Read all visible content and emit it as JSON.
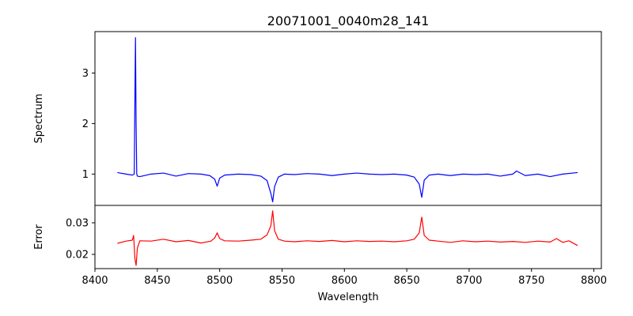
{
  "chart_data": {
    "type": "line",
    "title": "20071001_0040m28_141",
    "xlabel": "Wavelength",
    "xlim": [
      8400,
      8806
    ],
    "x_ticks": [
      "8400",
      "8450",
      "8500",
      "8550",
      "8600",
      "8650",
      "8700",
      "8750",
      "8800"
    ],
    "panels": [
      {
        "name": "spectrum",
        "ylabel": "Spectrum",
        "ylim": [
          0.38,
          3.82
        ],
        "y_ticks": [
          "1",
          "2",
          "3"
        ],
        "series": [
          {
            "color": "#0000ff",
            "x": [
              8418,
              8425,
              8430,
              8431.5,
              8432,
              8432.5,
              8433,
              8433.5,
              8434,
              8436,
              8445,
              8455,
              8465,
              8475,
              8485,
              8492,
              8496,
              8498,
              8500,
              8504,
              8515,
              8525,
              8533,
              8538,
              8541,
              8542.5,
              8544,
              8547,
              8552,
              8560,
              8570,
              8580,
              8590,
              8600,
              8610,
              8620,
              8630,
              8640,
              8650,
              8656,
              8660,
              8662,
              8664,
              8668,
              8675,
              8685,
              8695,
              8705,
              8715,
              8725,
              8735,
              8738,
              8745,
              8755,
              8765,
              8775,
              8787
            ],
            "y": [
              1.03,
              1.0,
              0.98,
              1.0,
              2.4,
              3.7,
              2.0,
              1.0,
              0.96,
              0.95,
              1.0,
              1.02,
              0.96,
              1.01,
              1.0,
              0.97,
              0.9,
              0.76,
              0.92,
              0.98,
              1.0,
              0.99,
              0.96,
              0.87,
              0.62,
              0.45,
              0.75,
              0.94,
              1.0,
              0.99,
              1.01,
              1.0,
              0.97,
              1.0,
              1.02,
              1.0,
              0.99,
              1.0,
              0.98,
              0.94,
              0.8,
              0.54,
              0.88,
              0.98,
              1.0,
              0.97,
              1.0,
              0.99,
              1.0,
              0.96,
              1.0,
              1.06,
              0.97,
              1.0,
              0.95,
              1.0,
              1.03
            ]
          }
        ]
      },
      {
        "name": "error",
        "ylabel": "Error",
        "ylim": [
          0.0155,
          0.0355
        ],
        "y_ticks": [
          "0.02",
          "0.03"
        ],
        "series": [
          {
            "color": "#ff0000",
            "x": [
              8418,
              8425,
              8430,
              8431,
              8432,
              8433,
              8434,
              8436,
              8445,
              8455,
              8465,
              8475,
              8485,
              8493,
              8496,
              8498,
              8500,
              8504,
              8515,
              8525,
              8533,
              8538,
              8541,
              8542.5,
              8544,
              8547,
              8552,
              8560,
              8570,
              8580,
              8590,
              8600,
              8610,
              8620,
              8630,
              8640,
              8650,
              8656,
              8660,
              8662,
              8664,
              8668,
              8675,
              8685,
              8695,
              8705,
              8715,
              8725,
              8735,
              8745,
              8755,
              8765,
              8770,
              8775,
              8780,
              8787
            ],
            "y": [
              0.0235,
              0.0242,
              0.0245,
              0.026,
              0.0188,
              0.0165,
              0.022,
              0.0243,
              0.0242,
              0.0248,
              0.024,
              0.0244,
              0.0236,
              0.0242,
              0.0252,
              0.0268,
              0.025,
              0.0243,
              0.0242,
              0.0245,
              0.0248,
              0.0262,
              0.029,
              0.0338,
              0.0275,
              0.0248,
              0.0242,
              0.024,
              0.0243,
              0.0241,
              0.0244,
              0.024,
              0.0243,
              0.0241,
              0.0242,
              0.024,
              0.0243,
              0.0248,
              0.0268,
              0.0318,
              0.026,
              0.0245,
              0.0242,
              0.0238,
              0.0243,
              0.024,
              0.0242,
              0.0239,
              0.0241,
              0.0238,
              0.0242,
              0.0239,
              0.025,
              0.0238,
              0.0243,
              0.0228
            ]
          }
        ]
      }
    ],
    "grid": false,
    "legend": "none"
  }
}
